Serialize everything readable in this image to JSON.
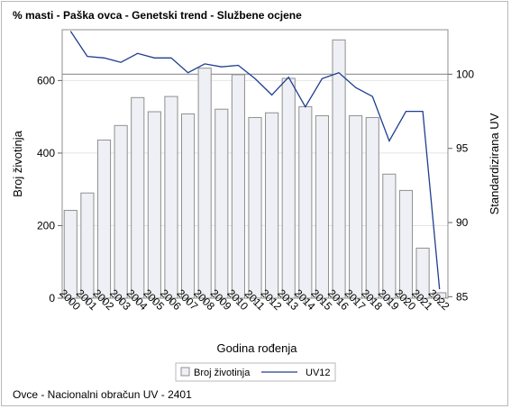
{
  "chart_data": {
    "type": "bar+line",
    "title": "% masti - Paška ovca - Genetski trend - Službene ocjene",
    "xlabel": "Godina rođenja",
    "ylabel_left": "Broj životinja",
    "ylabel_right": "Standardizirana UV",
    "categories": [
      "2000",
      "2001",
      "2002",
      "2003",
      "2004",
      "2005",
      "2006",
      "2007",
      "2008",
      "2009",
      "2010",
      "2011",
      "2012",
      "2013",
      "2014",
      "2015",
      "2016",
      "2017",
      "2018",
      "2019",
      "2020",
      "2021",
      "2022"
    ],
    "y_left_ticks": [
      0,
      200,
      400,
      600
    ],
    "y_left_range": [
      0,
      740
    ],
    "y_right_ticks": [
      85,
      90,
      95,
      100
    ],
    "y_right_range": [
      84.9,
      103
    ],
    "reference_line_right": 100,
    "series": [
      {
        "name": "Broj životinja",
        "type": "bar",
        "axis": "left",
        "color": "#eef0f5",
        "stroke": "#8f8f8f",
        "values": [
          242,
          290,
          436,
          476,
          553,
          514,
          556,
          508,
          634,
          521,
          616,
          498,
          511,
          606,
          528,
          503,
          712,
          503,
          498,
          342,
          297,
          138,
          15
        ]
      },
      {
        "name": "UV12",
        "type": "line",
        "axis": "right",
        "color": "#1f3e8f",
        "values": [
          102.9,
          101.2,
          101.1,
          100.8,
          101.4,
          101.1,
          101.1,
          100.1,
          100.7,
          100.5,
          100.6,
          99.7,
          98.6,
          99.8,
          97.8,
          99.7,
          100.1,
          99.1,
          98.5,
          95.5,
          97.5,
          97.5,
          85.5
        ]
      }
    ],
    "legend_position": "bottom-center",
    "grid": true
  },
  "footnote": "Ovce - Nacionalni obračun UV - 2401"
}
